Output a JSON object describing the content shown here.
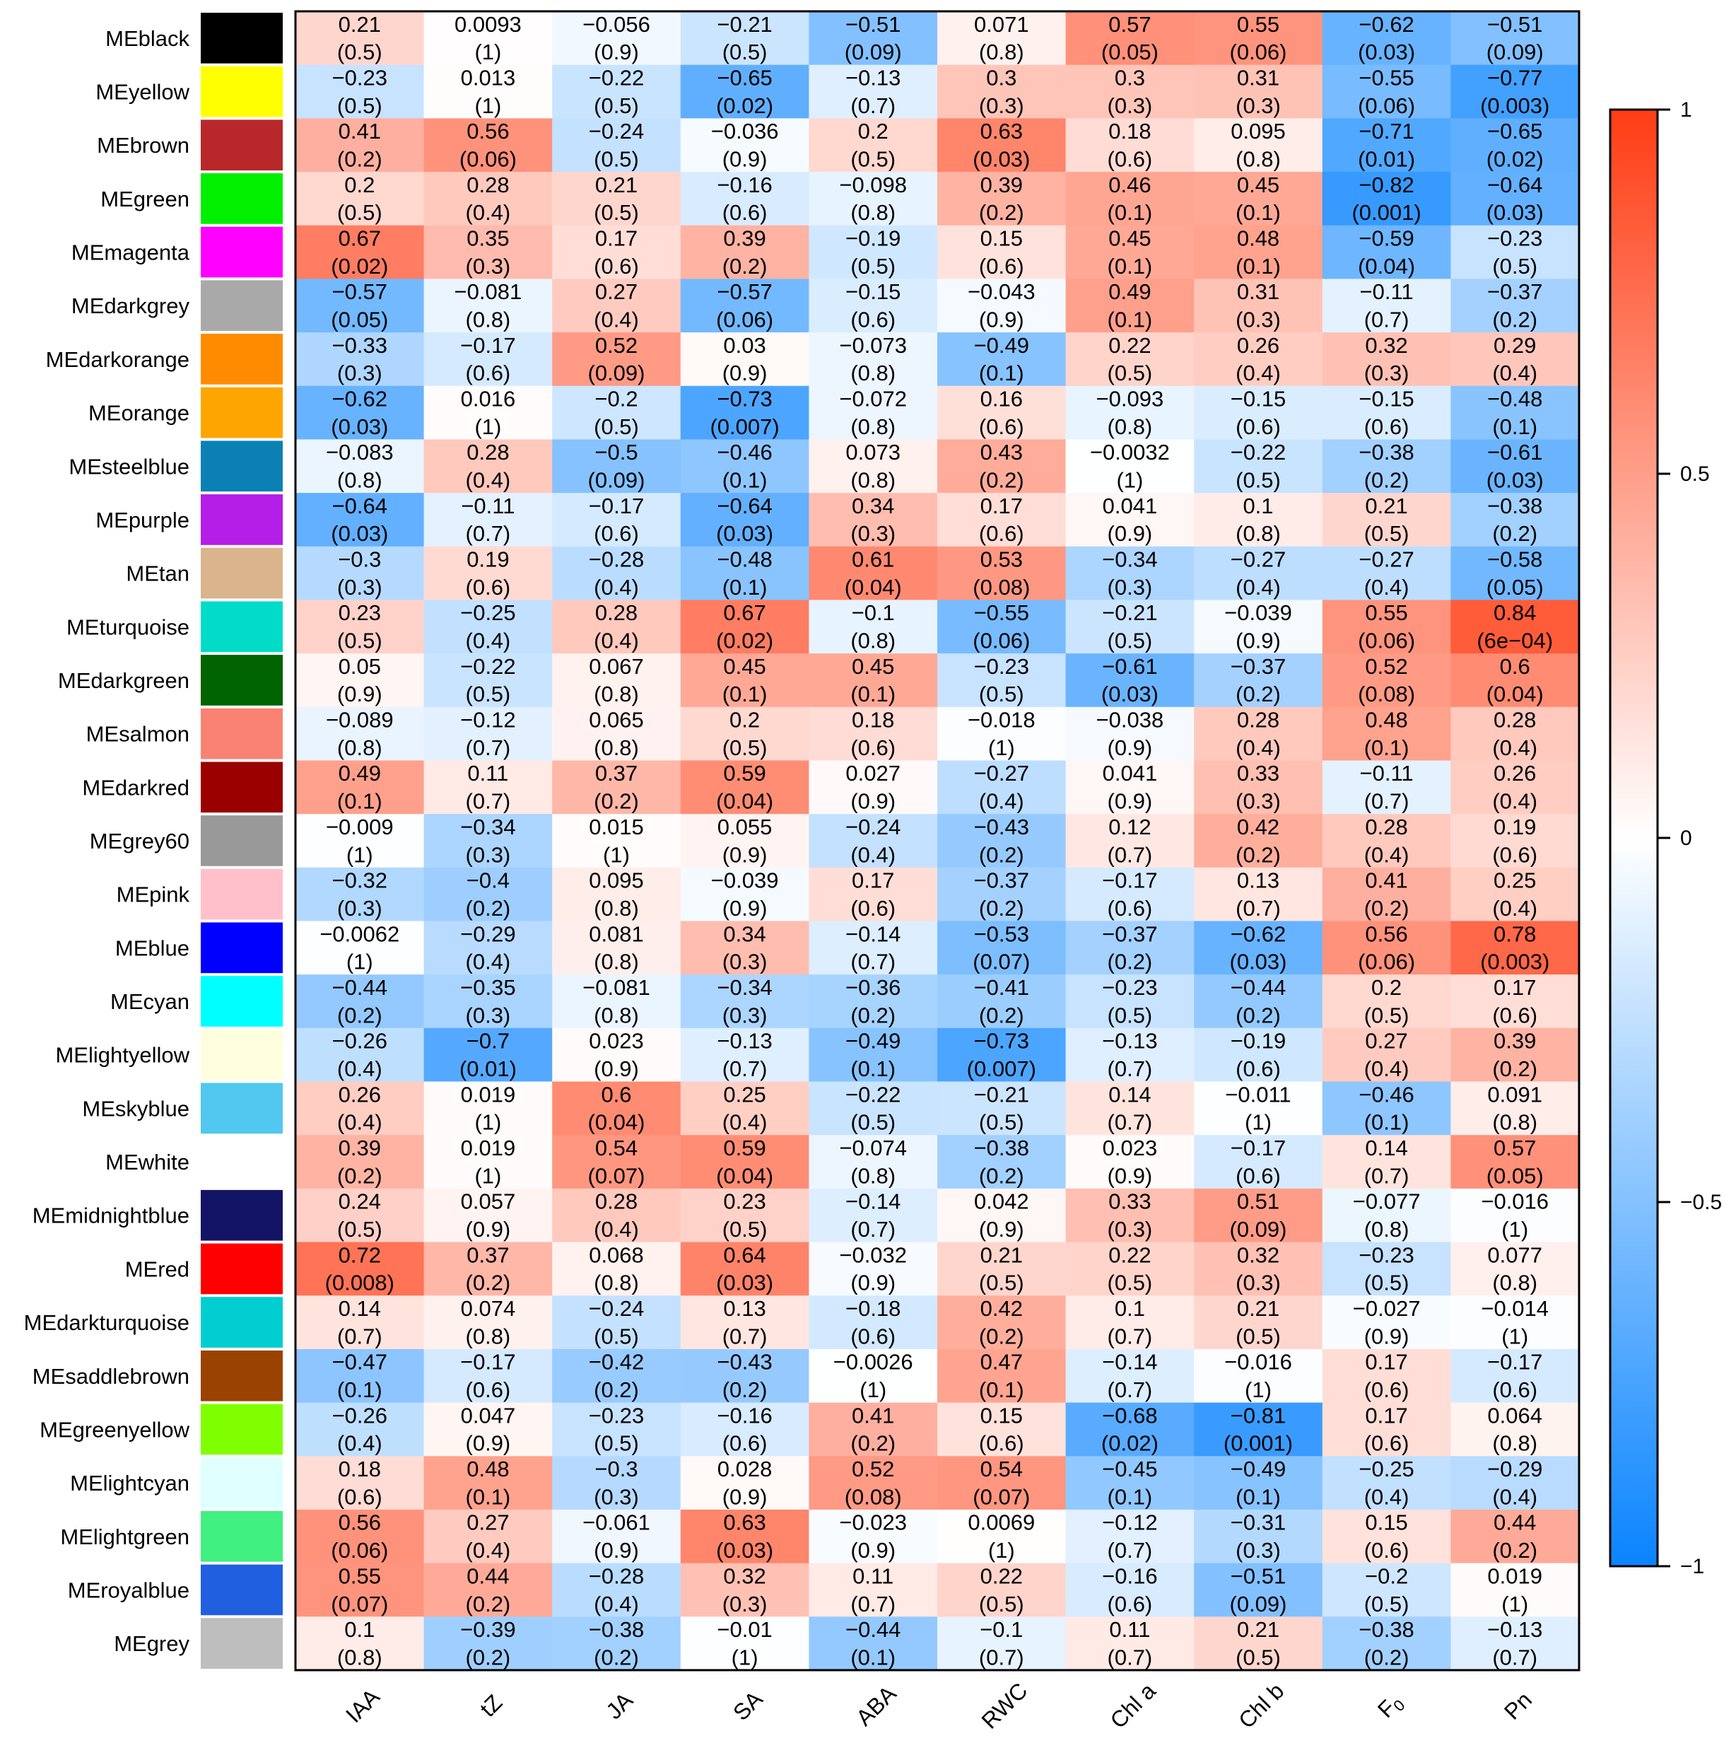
{
  "chart_data": {
    "type": "heatmap",
    "title": "",
    "color_scale": {
      "min": -1,
      "max": 1,
      "low_color": "#0a84ff",
      "mid_color": "#ffffff",
      "high_color": "#ff3d14"
    },
    "colorbar_ticks": [
      "1",
      "0.5",
      "0",
      "−0.5",
      "−1"
    ],
    "colorbar_tick_values": [
      1,
      0.5,
      0,
      -0.5,
      -1
    ],
    "columns": [
      "IAA",
      "tZ",
      "JA",
      "SA",
      "ABA",
      "RWC",
      "Chl a",
      "Chl b",
      "F0",
      "Pn"
    ],
    "rows": [
      {
        "name": "MEblack",
        "color": "#000000",
        "r": [
          "0.21",
          "0.0093",
          "−0.056",
          "−0.21",
          "−0.51",
          "0.071",
          "0.57",
          "0.55",
          "−0.62",
          "−0.51"
        ],
        "p": [
          "(0.5)",
          "(1)",
          "(0.9)",
          "(0.5)",
          "(0.09)",
          "(0.8)",
          "(0.05)",
          "(0.06)",
          "(0.03)",
          "(0.09)"
        ]
      },
      {
        "name": "MEyellow",
        "color": "#ffff00",
        "r": [
          "−0.23",
          "0.013",
          "−0.22",
          "−0.65",
          "−0.13",
          "0.3",
          "0.3",
          "0.31",
          "−0.55",
          "−0.77"
        ],
        "p": [
          "(0.5)",
          "(1)",
          "(0.5)",
          "(0.02)",
          "(0.7)",
          "(0.3)",
          "(0.3)",
          "(0.3)",
          "(0.06)",
          "(0.003)"
        ]
      },
      {
        "name": "MEbrown",
        "color": "#b8282a",
        "r": [
          "0.41",
          "0.56",
          "−0.24",
          "−0.036",
          "0.2",
          "0.63",
          "0.18",
          "0.095",
          "−0.71",
          "−0.65"
        ],
        "p": [
          "(0.2)",
          "(0.06)",
          "(0.5)",
          "(0.9)",
          "(0.5)",
          "(0.03)",
          "(0.6)",
          "(0.8)",
          "(0.01)",
          "(0.02)"
        ]
      },
      {
        "name": "MEgreen",
        "color": "#00f000",
        "r": [
          "0.2",
          "0.28",
          "0.21",
          "−0.16",
          "−0.098",
          "0.39",
          "0.46",
          "0.45",
          "−0.82",
          "−0.64"
        ],
        "p": [
          "(0.5)",
          "(0.4)",
          "(0.5)",
          "(0.6)",
          "(0.8)",
          "(0.2)",
          "(0.1)",
          "(0.1)",
          "(0.001)",
          "(0.03)"
        ]
      },
      {
        "name": "MEmagenta",
        "color": "#ff00ff",
        "r": [
          "0.67",
          "0.35",
          "0.17",
          "0.39",
          "−0.19",
          "0.15",
          "0.45",
          "0.48",
          "−0.59",
          "−0.23"
        ],
        "p": [
          "(0.02)",
          "(0.3)",
          "(0.6)",
          "(0.2)",
          "(0.5)",
          "(0.6)",
          "(0.1)",
          "(0.1)",
          "(0.04)",
          "(0.5)"
        ]
      },
      {
        "name": "MEdarkgrey",
        "color": "#a9a9a9",
        "r": [
          "−0.57",
          "−0.081",
          "0.27",
          "−0.57",
          "−0.15",
          "−0.043",
          "0.49",
          "0.31",
          "−0.11",
          "−0.37"
        ],
        "p": [
          "(0.05)",
          "(0.8)",
          "(0.4)",
          "(0.06)",
          "(0.6)",
          "(0.9)",
          "(0.1)",
          "(0.3)",
          "(0.7)",
          "(0.2)"
        ]
      },
      {
        "name": "MEdarkorange",
        "color": "#ff8c00",
        "r": [
          "−0.33",
          "−0.17",
          "0.52",
          "0.03",
          "−0.073",
          "−0.49",
          "0.22",
          "0.26",
          "0.32",
          "0.29"
        ],
        "p": [
          "(0.3)",
          "(0.6)",
          "(0.09)",
          "(0.9)",
          "(0.8)",
          "(0.1)",
          "(0.5)",
          "(0.4)",
          "(0.3)",
          "(0.4)"
        ]
      },
      {
        "name": "MEorange",
        "color": "#ffa500",
        "r": [
          "−0.62",
          "0.016",
          "−0.2",
          "−0.73",
          "−0.072",
          "0.16",
          "−0.093",
          "−0.15",
          "−0.15",
          "−0.48"
        ],
        "p": [
          "(0.03)",
          "(1)",
          "(0.5)",
          "(0.007)",
          "(0.8)",
          "(0.6)",
          "(0.8)",
          "(0.6)",
          "(0.6)",
          "(0.1)"
        ]
      },
      {
        "name": "MEsteelblue",
        "color": "#0a80b4",
        "r": [
          "−0.083",
          "0.28",
          "−0.5",
          "−0.46",
          "0.073",
          "0.43",
          "−0.0032",
          "−0.22",
          "−0.38",
          "−0.61"
        ],
        "p": [
          "(0.8)",
          "(0.4)",
          "(0.09)",
          "(0.1)",
          "(0.8)",
          "(0.2)",
          "(1)",
          "(0.5)",
          "(0.2)",
          "(0.03)"
        ]
      },
      {
        "name": "MEpurple",
        "color": "#b41ee6",
        "r": [
          "−0.64",
          "−0.11",
          "−0.17",
          "−0.64",
          "0.34",
          "0.17",
          "0.041",
          "0.1",
          "0.21",
          "−0.38"
        ],
        "p": [
          "(0.03)",
          "(0.7)",
          "(0.6)",
          "(0.03)",
          "(0.3)",
          "(0.6)",
          "(0.9)",
          "(0.8)",
          "(0.5)",
          "(0.2)"
        ]
      },
      {
        "name": "MEtan",
        "color": "#d9b48c",
        "r": [
          "−0.3",
          "0.19",
          "−0.28",
          "−0.48",
          "0.61",
          "0.53",
          "−0.34",
          "−0.27",
          "−0.27",
          "−0.58"
        ],
        "p": [
          "(0.3)",
          "(0.6)",
          "(0.4)",
          "(0.1)",
          "(0.04)",
          "(0.08)",
          "(0.3)",
          "(0.4)",
          "(0.4)",
          "(0.05)"
        ]
      },
      {
        "name": "MEturquoise",
        "color": "#00dcc8",
        "r": [
          "0.23",
          "−0.25",
          "0.28",
          "0.67",
          "−0.1",
          "−0.55",
          "−0.21",
          "−0.039",
          "0.55",
          "0.84"
        ],
        "p": [
          "(0.5)",
          "(0.4)",
          "(0.4)",
          "(0.02)",
          "(0.8)",
          "(0.06)",
          "(0.5)",
          "(0.9)",
          "(0.06)",
          "(6e−04)"
        ]
      },
      {
        "name": "MEdarkgreen",
        "color": "#006400",
        "r": [
          "0.05",
          "−0.22",
          "0.067",
          "0.45",
          "0.45",
          "−0.23",
          "−0.61",
          "−0.37",
          "0.52",
          "0.6"
        ],
        "p": [
          "(0.9)",
          "(0.5)",
          "(0.8)",
          "(0.1)",
          "(0.1)",
          "(0.5)",
          "(0.03)",
          "(0.2)",
          "(0.08)",
          "(0.04)"
        ]
      },
      {
        "name": "MEsalmon",
        "color": "#fa8272",
        "r": [
          "−0.089",
          "−0.12",
          "0.065",
          "0.2",
          "0.18",
          "−0.018",
          "−0.038",
          "0.28",
          "0.48",
          "0.28"
        ],
        "p": [
          "(0.8)",
          "(0.7)",
          "(0.8)",
          "(0.5)",
          "(0.6)",
          "(1)",
          "(0.9)",
          "(0.4)",
          "(0.1)",
          "(0.4)"
        ]
      },
      {
        "name": "MEdarkred",
        "color": "#9a0000",
        "r": [
          "0.49",
          "0.11",
          "0.37",
          "0.59",
          "0.027",
          "−0.27",
          "0.041",
          "0.33",
          "−0.11",
          "0.26"
        ],
        "p": [
          "(0.1)",
          "(0.7)",
          "(0.2)",
          "(0.04)",
          "(0.9)",
          "(0.4)",
          "(0.9)",
          "(0.3)",
          "(0.7)",
          "(0.4)"
        ]
      },
      {
        "name": "MEgrey60",
        "color": "#999999",
        "r": [
          "−0.009",
          "−0.34",
          "0.015",
          "0.055",
          "−0.24",
          "−0.43",
          "0.12",
          "0.42",
          "0.28",
          "0.19"
        ],
        "p": [
          "(1)",
          "(0.3)",
          "(1)",
          "(0.9)",
          "(0.4)",
          "(0.2)",
          "(0.7)",
          "(0.2)",
          "(0.4)",
          "(0.6)"
        ]
      },
      {
        "name": "MEpink",
        "color": "#ffc0cb",
        "r": [
          "−0.32",
          "−0.4",
          "0.095",
          "−0.039",
          "0.17",
          "−0.37",
          "−0.17",
          "0.13",
          "0.41",
          "0.25"
        ],
        "p": [
          "(0.3)",
          "(0.2)",
          "(0.8)",
          "(0.9)",
          "(0.6)",
          "(0.2)",
          "(0.6)",
          "(0.7)",
          "(0.2)",
          "(0.4)"
        ]
      },
      {
        "name": "MEblue",
        "color": "#0000ff",
        "r": [
          "−0.0062",
          "−0.29",
          "0.081",
          "0.34",
          "−0.14",
          "−0.53",
          "−0.37",
          "−0.62",
          "0.56",
          "0.78"
        ],
        "p": [
          "(1)",
          "(0.4)",
          "(0.8)",
          "(0.3)",
          "(0.7)",
          "(0.07)",
          "(0.2)",
          "(0.03)",
          "(0.06)",
          "(0.003)"
        ]
      },
      {
        "name": "MEcyan",
        "color": "#00ffff",
        "r": [
          "−0.44",
          "−0.35",
          "−0.081",
          "−0.34",
          "−0.36",
          "−0.41",
          "−0.23",
          "−0.44",
          "0.2",
          "0.17"
        ],
        "p": [
          "(0.2)",
          "(0.3)",
          "(0.8)",
          "(0.3)",
          "(0.2)",
          "(0.2)",
          "(0.5)",
          "(0.2)",
          "(0.5)",
          "(0.6)"
        ]
      },
      {
        "name": "MElightyellow",
        "color": "#ffffe0",
        "r": [
          "−0.26",
          "−0.7",
          "0.023",
          "−0.13",
          "−0.49",
          "−0.73",
          "−0.13",
          "−0.19",
          "0.27",
          "0.39"
        ],
        "p": [
          "(0.4)",
          "(0.01)",
          "(0.9)",
          "(0.7)",
          "(0.1)",
          "(0.007)",
          "(0.7)",
          "(0.6)",
          "(0.4)",
          "(0.2)"
        ]
      },
      {
        "name": "MEskyblue",
        "color": "#50c8f0",
        "r": [
          "0.26",
          "0.019",
          "0.6",
          "0.25",
          "−0.22",
          "−0.21",
          "0.14",
          "−0.011",
          "−0.46",
          "0.091"
        ],
        "p": [
          "(0.4)",
          "(1)",
          "(0.04)",
          "(0.4)",
          "(0.5)",
          "(0.5)",
          "(0.7)",
          "(1)",
          "(0.1)",
          "(0.8)"
        ]
      },
      {
        "name": "MEwhite",
        "color": "#ffffff",
        "r": [
          "0.39",
          "0.019",
          "0.54",
          "0.59",
          "−0.074",
          "−0.38",
          "0.023",
          "−0.17",
          "0.14",
          "0.57"
        ],
        "p": [
          "(0.2)",
          "(1)",
          "(0.07)",
          "(0.04)",
          "(0.8)",
          "(0.2)",
          "(0.9)",
          "(0.6)",
          "(0.7)",
          "(0.05)"
        ]
      },
      {
        "name": "MEmidnightblue",
        "color": "#141466",
        "r": [
          "0.24",
          "0.057",
          "0.28",
          "0.23",
          "−0.14",
          "0.042",
          "0.33",
          "0.51",
          "−0.077",
          "−0.016"
        ],
        "p": [
          "(0.5)",
          "(0.9)",
          "(0.4)",
          "(0.5)",
          "(0.7)",
          "(0.9)",
          "(0.3)",
          "(0.09)",
          "(0.8)",
          "(1)"
        ]
      },
      {
        "name": "MEred",
        "color": "#ff0000",
        "r": [
          "0.72",
          "0.37",
          "0.068",
          "0.64",
          "−0.032",
          "0.21",
          "0.22",
          "0.32",
          "−0.23",
          "0.077"
        ],
        "p": [
          "(0.008)",
          "(0.2)",
          "(0.8)",
          "(0.03)",
          "(0.9)",
          "(0.5)",
          "(0.5)",
          "(0.3)",
          "(0.5)",
          "(0.8)"
        ]
      },
      {
        "name": "MEdarkturquoise",
        "color": "#00ced1",
        "r": [
          "0.14",
          "0.074",
          "−0.24",
          "0.13",
          "−0.18",
          "0.42",
          "0.1",
          "0.21",
          "−0.027",
          "−0.014"
        ],
        "p": [
          "(0.7)",
          "(0.8)",
          "(0.5)",
          "(0.7)",
          "(0.6)",
          "(0.2)",
          "(0.7)",
          "(0.5)",
          "(0.9)",
          "(1)"
        ]
      },
      {
        "name": "MEsaddlebrown",
        "color": "#9a4200",
        "r": [
          "−0.47",
          "−0.17",
          "−0.42",
          "−0.43",
          "−0.0026",
          "0.47",
          "−0.14",
          "−0.016",
          "0.17",
          "−0.17"
        ],
        "p": [
          "(0.1)",
          "(0.6)",
          "(0.2)",
          "(0.2)",
          "(1)",
          "(0.1)",
          "(0.7)",
          "(1)",
          "(0.6)",
          "(0.6)"
        ]
      },
      {
        "name": "MEgreenyellow",
        "color": "#80ff00",
        "r": [
          "−0.26",
          "0.047",
          "−0.23",
          "−0.16",
          "0.41",
          "0.15",
          "−0.68",
          "−0.81",
          "0.17",
          "0.064"
        ],
        "p": [
          "(0.4)",
          "(0.9)",
          "(0.5)",
          "(0.6)",
          "(0.2)",
          "(0.6)",
          "(0.02)",
          "(0.001)",
          "(0.6)",
          "(0.8)"
        ]
      },
      {
        "name": "MElightcyan",
        "color": "#e0ffff",
        "r": [
          "0.18",
          "0.48",
          "−0.3",
          "0.028",
          "0.52",
          "0.54",
          "−0.45",
          "−0.49",
          "−0.25",
          "−0.29"
        ],
        "p": [
          "(0.6)",
          "(0.1)",
          "(0.3)",
          "(0.9)",
          "(0.08)",
          "(0.07)",
          "(0.1)",
          "(0.1)",
          "(0.4)",
          "(0.4)"
        ]
      },
      {
        "name": "MElightgreen",
        "color": "#40f080",
        "r": [
          "0.56",
          "0.27",
          "−0.061",
          "0.63",
          "−0.023",
          "0.0069",
          "−0.12",
          "−0.31",
          "0.15",
          "0.44"
        ],
        "p": [
          "(0.06)",
          "(0.4)",
          "(0.9)",
          "(0.03)",
          "(0.9)",
          "(1)",
          "(0.7)",
          "(0.3)",
          "(0.6)",
          "(0.2)"
        ]
      },
      {
        "name": "MEroyalblue",
        "color": "#2060e0",
        "r": [
          "0.55",
          "0.44",
          "−0.28",
          "0.32",
          "0.11",
          "0.22",
          "−0.16",
          "−0.51",
          "−0.2",
          "0.019"
        ],
        "p": [
          "(0.07)",
          "(0.2)",
          "(0.4)",
          "(0.3)",
          "(0.7)",
          "(0.5)",
          "(0.6)",
          "(0.09)",
          "(0.5)",
          "(1)"
        ]
      },
      {
        "name": "MEgrey",
        "color": "#bebebe",
        "r": [
          "0.1",
          "−0.39",
          "−0.38",
          "−0.01",
          "−0.44",
          "−0.1",
          "0.11",
          "0.21",
          "−0.38",
          "−0.13"
        ],
        "p": [
          "(0.8)",
          "(0.2)",
          "(0.2)",
          "(1)",
          "(0.1)",
          "(0.7)",
          "(0.7)",
          "(0.5)",
          "(0.2)",
          "(0.7)"
        ]
      }
    ]
  }
}
